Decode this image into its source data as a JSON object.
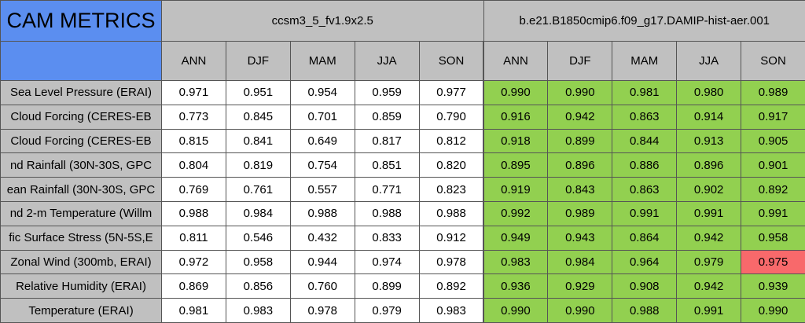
{
  "title": "CAM METRICS",
  "groups": [
    {
      "name": "ccsm3_5_fv1.9x2.5",
      "color": "#ffffff"
    },
    {
      "name": "b.e21.B1850cmip6.f09_g17.DAMIP-hist-aer.001",
      "color": "#92d050"
    }
  ],
  "seasons": [
    "ANN",
    "DJF",
    "MAM",
    "JJA",
    "SON"
  ],
  "highlight": {
    "row": 7,
    "col": 9,
    "color": "#f8696b"
  },
  "rows": [
    {
      "label": "Sea Level Pressure (ERAI)",
      "values": [
        "0.971",
        "0.951",
        "0.954",
        "0.959",
        "0.977",
        "0.990",
        "0.990",
        "0.981",
        "0.980",
        "0.989"
      ]
    },
    {
      "label": "Cloud Forcing (CERES-EB",
      "values": [
        "0.773",
        "0.845",
        "0.701",
        "0.859",
        "0.790",
        "0.916",
        "0.942",
        "0.863",
        "0.914",
        "0.917"
      ]
    },
    {
      "label": "Cloud Forcing (CERES-EB",
      "values": [
        "0.815",
        "0.841",
        "0.649",
        "0.817",
        "0.812",
        "0.918",
        "0.899",
        "0.844",
        "0.913",
        "0.905"
      ]
    },
    {
      "label": "nd Rainfall (30N-30S, GPC",
      "values": [
        "0.804",
        "0.819",
        "0.754",
        "0.851",
        "0.820",
        "0.895",
        "0.896",
        "0.886",
        "0.896",
        "0.901"
      ]
    },
    {
      "label": "ean Rainfall (30N-30S, GPC",
      "values": [
        "0.769",
        "0.761",
        "0.557",
        "0.771",
        "0.823",
        "0.919",
        "0.843",
        "0.863",
        "0.902",
        "0.892"
      ]
    },
    {
      "label": "nd 2-m Temperature (Willm",
      "values": [
        "0.988",
        "0.984",
        "0.988",
        "0.988",
        "0.988",
        "0.992",
        "0.989",
        "0.991",
        "0.991",
        "0.991"
      ]
    },
    {
      "label": "fic Surface Stress (5N-5S,E",
      "values": [
        "0.811",
        "0.546",
        "0.432",
        "0.833",
        "0.912",
        "0.949",
        "0.943",
        "0.864",
        "0.942",
        "0.958"
      ]
    },
    {
      "label": "Zonal Wind (300mb, ERAI)",
      "values": [
        "0.972",
        "0.958",
        "0.944",
        "0.974",
        "0.978",
        "0.983",
        "0.984",
        "0.964",
        "0.979",
        "0.975"
      ]
    },
    {
      "label": "Relative Humidity (ERAI)",
      "values": [
        "0.869",
        "0.856",
        "0.760",
        "0.899",
        "0.892",
        "0.936",
        "0.929",
        "0.908",
        "0.942",
        "0.939"
      ]
    },
    {
      "label": "Temperature (ERAI)",
      "values": [
        "0.981",
        "0.983",
        "0.978",
        "0.979",
        "0.983",
        "0.990",
        "0.990",
        "0.988",
        "0.991",
        "0.990"
      ]
    }
  ]
}
